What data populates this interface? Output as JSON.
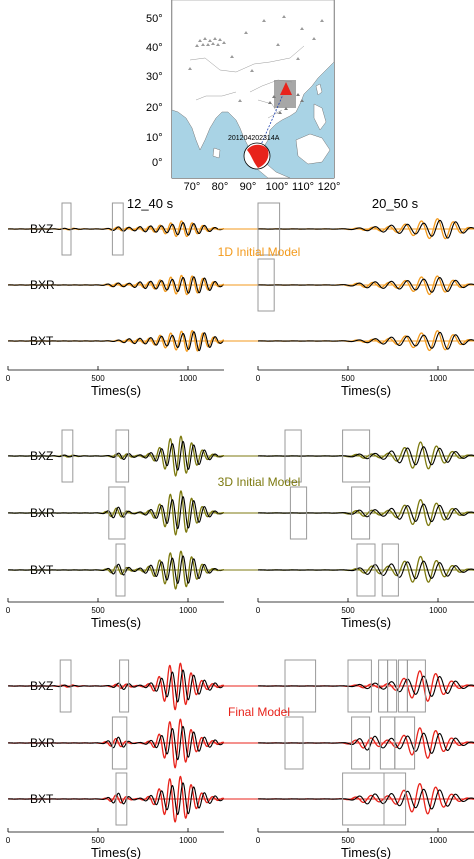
{
  "figure": {
    "map": {
      "event_label": "201204202314A",
      "lat_ticks": [
        "0°",
        "10°",
        "20°",
        "30°",
        "40°",
        "50°"
      ],
      "lon_ticks": [
        "70°",
        "80°",
        "90°",
        "100°",
        "110°",
        "120°"
      ],
      "ocean_color": "#a9d3e5",
      "land_color": "#ffffff",
      "source_color": "#e8231b"
    },
    "period_bands": [
      "12_40 s",
      "20_50 s"
    ],
    "components": [
      "BXZ",
      "BXR",
      "BXT"
    ],
    "x_axis": {
      "ticks": [
        "0",
        "500",
        "1000"
      ],
      "label": "Times(s)"
    },
    "panels": [
      {
        "model_label": "1D  Initial Model",
        "color": "#f39a1c"
      },
      {
        "model_label": "3D Initial Model",
        "color": "#7d7a10"
      },
      {
        "model_label": "Final Model",
        "color": "#e8231b"
      }
    ],
    "chart_data": {
      "type": "line",
      "x_unit": "s",
      "xlim": [
        0,
        1200
      ],
      "x_ticks": [
        0,
        500,
        1000
      ],
      "xlabel": "Times(s)",
      "period_bands": [
        "12_40 s",
        "20_50 s"
      ],
      "components": [
        "BXZ",
        "BXR",
        "BXT"
      ],
      "observed_color": "#000000",
      "synthetic_models": [
        "1D  Initial Model",
        "3D Initial Model",
        "Final Model"
      ],
      "window_units": "s",
      "windows": [
        [
          [
            [
              [
                300,
                350
              ],
              [
                580,
                640
              ]
            ],
            [
              [
                0,
                120
              ]
            ]
          ],
          [
            [],
            [
              [
                0,
                90
              ]
            ]
          ],
          [
            [],
            []
          ]
        ],
        [
          [
            [
              [
                300,
                360
              ],
              [
                600,
                670
              ]
            ],
            [
              [
                150,
                240
              ],
              [
                470,
                620
              ]
            ]
          ],
          [
            [
              [
                560,
                650
              ]
            ],
            [
              [
                180,
                270
              ],
              [
                520,
                620
              ]
            ]
          ],
          [
            [
              [
                600,
                650
              ]
            ],
            [
              [
                550,
                650
              ],
              [
                690,
                780
              ]
            ]
          ]
        ],
        [
          [
            [
              [
                290,
                350
              ],
              [
                620,
                670
              ]
            ],
            [
              [
                150,
                320
              ],
              [
                500,
                630
              ],
              [
                670,
                720
              ],
              [
                720,
                770
              ],
              [
                780,
                830
              ],
              [
                830,
                930
              ]
            ]
          ],
          [
            [
              [
                580,
                660
              ]
            ],
            [
              [
                150,
                250
              ],
              [
                520,
                620
              ],
              [
                680,
                760
              ],
              [
                760,
                870
              ]
            ]
          ],
          [
            [
              [
                600,
                660
              ]
            ],
            [
              [
                470,
                700
              ],
              [
                700,
                820
              ]
            ]
          ]
        ]
      ]
    }
  }
}
